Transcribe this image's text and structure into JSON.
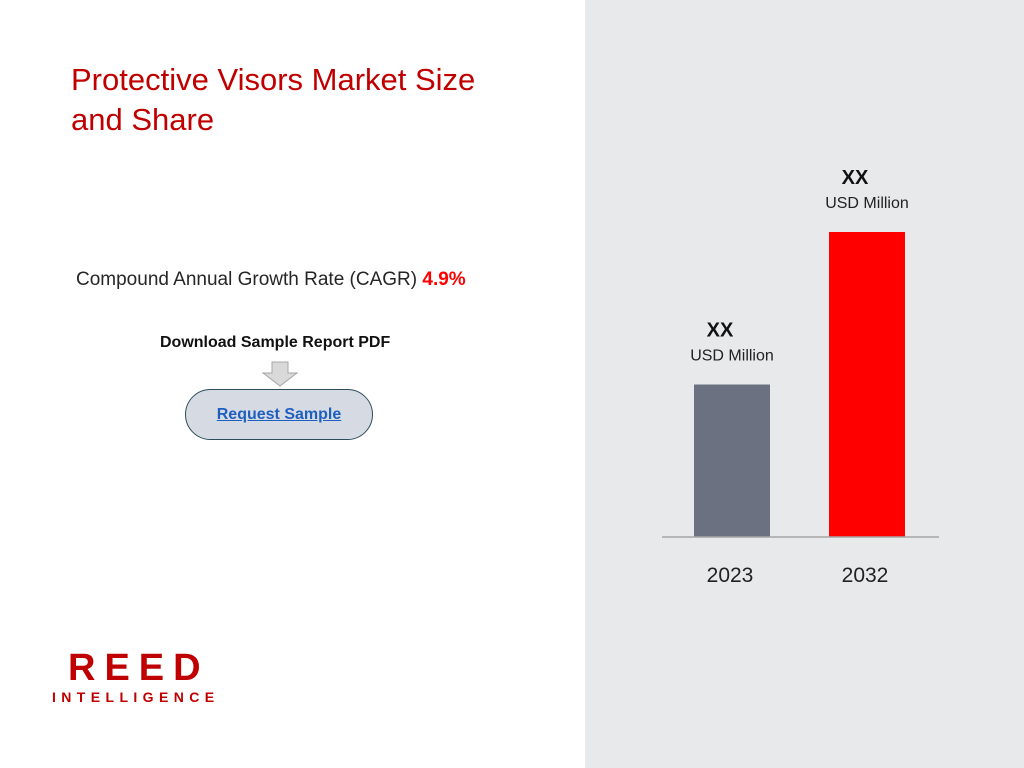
{
  "header": {
    "title": "Protective Visors Market Size and Share"
  },
  "cagr": {
    "label": "Compound Annual Growth Rate (CAGR)",
    "value": "4.9%"
  },
  "download": {
    "label": "Download Sample Report PDF",
    "button_label": "Request Sample"
  },
  "logo": {
    "main": "REED",
    "sub": "INTELLIGENCE"
  },
  "colors": {
    "accent": "#c00000",
    "bar_2023": "#6b7180",
    "bar_2032": "#ff0000",
    "right_panel": "#e8e9eb"
  },
  "chart_data": {
    "type": "bar",
    "categories": [
      "2023",
      "2032"
    ],
    "values": [
      50,
      100
    ],
    "value_labels": [
      "XX",
      "XX"
    ],
    "unit_labels": [
      "USD Million",
      "USD Million"
    ],
    "colors": [
      "#6b7180",
      "#ff0000"
    ],
    "title": "",
    "xlabel": "",
    "ylabel": "",
    "ylim": [
      0,
      100
    ],
    "grid": false
  }
}
